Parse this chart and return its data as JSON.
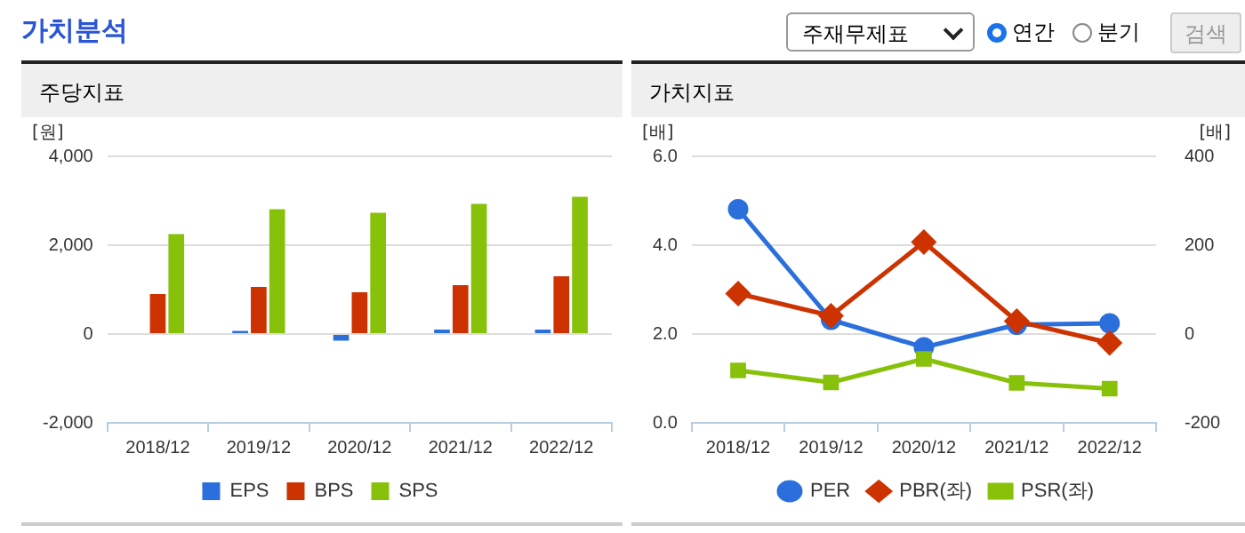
{
  "chart_data": [
    {
      "type": "other",
      "title": "가치분석",
      "annotations": [
        "주재무제표",
        "연간",
        "분기",
        "검색"
      ]
    },
    {
      "type": "bar",
      "title": "주당지표",
      "ylabel": "[원]",
      "categories": [
        "2018/12",
        "2019/12",
        "2020/12",
        "2021/12",
        "2022/12"
      ],
      "series": [
        {
          "name": "EPS",
          "color": "#2a6fdb",
          "values": [
            null,
            70,
            -150,
            100,
            100
          ]
        },
        {
          "name": "BPS",
          "color": "#cc3300",
          "values": [
            900,
            1060,
            940,
            1100,
            1300
          ]
        },
        {
          "name": "SPS",
          "color": "#88c10a",
          "values": [
            2250,
            2810,
            2730,
            2930,
            3090
          ]
        }
      ],
      "ylim": [
        -2000,
        4000
      ],
      "yticks": [
        {
          "value": -2000,
          "label": "-2,000"
        },
        0,
        {
          "value": 2000,
          "label": "2,000"
        },
        {
          "value": 4000,
          "label": "4,000"
        }
      ],
      "grid": "y",
      "legend": "bottom"
    },
    {
      "type": "line",
      "title": "가치지표",
      "ylabel": "[배]",
      "y2label": "[배]",
      "categories": [
        "2018/12",
        "2019/12",
        "2020/12",
        "2021/12",
        "2022/12"
      ],
      "series": [
        {
          "name": "PER",
          "color": "#2a6fdb",
          "axis": "y2",
          "marker": "circle",
          "values": [
            281,
            32,
            -30,
            21,
            24
          ]
        },
        {
          "name": "PBR(좌)",
          "color": "#cc3300",
          "marker": "diamond",
          "values": [
            2.91,
            2.41,
            4.07,
            2.29,
            1.8
          ]
        },
        {
          "name": "PSR(좌)",
          "color": "#88c10a",
          "marker": "square",
          "values": [
            1.18,
            0.91,
            1.44,
            0.9,
            0.77
          ]
        }
      ],
      "ylim": [
        0,
        6
      ],
      "yticks": [
        {
          "value": 0,
          "label": "0.0"
        },
        {
          "value": 2,
          "label": "2.0"
        },
        {
          "value": 4,
          "label": "4.0"
        },
        {
          "value": 6,
          "label": "6.0"
        }
      ],
      "y2lim": [
        -200,
        400
      ],
      "y2ticks": [
        -200,
        0,
        200,
        400
      ],
      "grid": "y",
      "legend": "bottom",
      "line_style": "solid"
    }
  ]
}
